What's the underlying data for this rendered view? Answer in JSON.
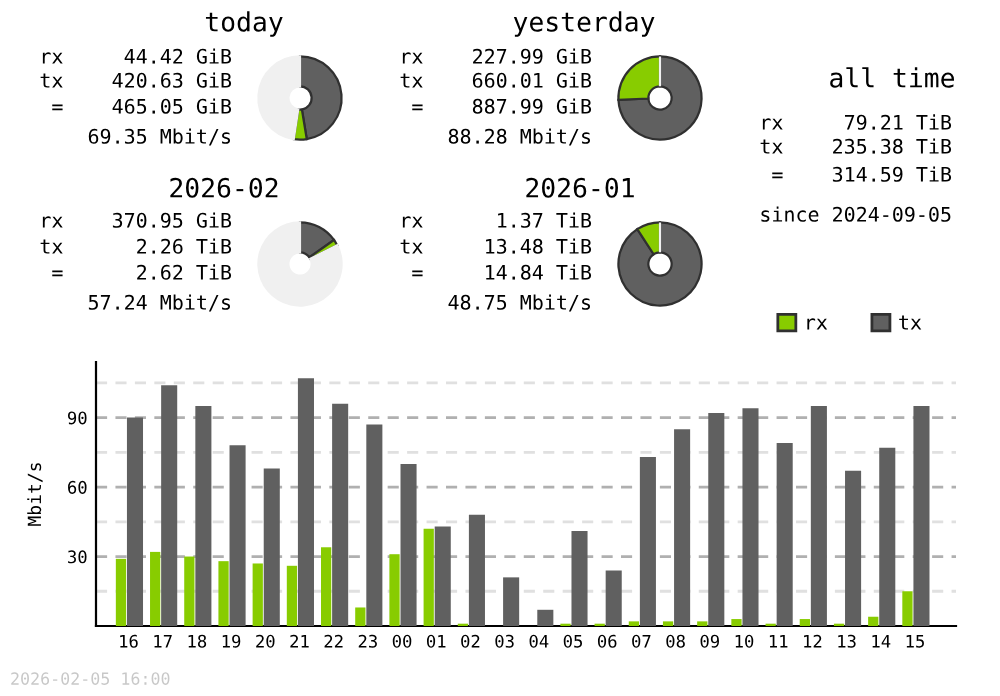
{
  "chart_data": [
    {
      "type": "donut",
      "title": "today",
      "categories": [
        null,
        null,
        null
      ],
      "values": [
        47.4,
        5.0,
        47.6
      ],
      "colors": [
        "#606060",
        "#88cc00",
        "#f0f0f0"
      ],
      "annotations": [
        "rx     44.42 GiB",
        "tx    420.63 GiB",
        " =    465.05 GiB",
        "69.35 Mbit/s"
      ]
    },
    {
      "type": "donut",
      "title": "yesterday",
      "categories": [
        null,
        null,
        null
      ],
      "values": [
        74.3,
        25.7,
        0
      ],
      "colors": [
        "#606060",
        "#88cc00",
        "#f0f0f0"
      ],
      "annotations": [
        "rx    227.99 GiB",
        "tx    660.01 GiB",
        " =    887.99 GiB",
        "88.28 Mbit/s"
      ]
    },
    {
      "type": "other",
      "title": "all time",
      "annotations": [
        "rx     79.21 TiB",
        "tx    235.38 TiB",
        " =    314.59 TiB",
        "since 2024-09-05"
      ]
    },
    {
      "type": "donut",
      "title": "2026-02",
      "categories": [
        null,
        null,
        null
      ],
      "values": [
        15.2,
        2.4,
        82.4
      ],
      "colors": [
        "#606060",
        "#88cc00",
        "#f0f0f0"
      ],
      "annotations": [
        "rx    370.95 GiB",
        "tx      2.26 TiB",
        " =      2.62 TiB",
        "57.24 Mbit/s"
      ]
    },
    {
      "type": "donut",
      "title": "2026-01",
      "categories": [
        null,
        null,
        null
      ],
      "values": [
        90.8,
        9.2,
        0
      ],
      "colors": [
        "#606060",
        "#88cc00",
        "#f0f0f0"
      ],
      "annotations": [
        "rx      1.37 TiB",
        "tx     13.48 TiB",
        " =     14.84 TiB",
        "48.75 Mbit/s"
      ]
    },
    {
      "type": "bar",
      "ylabel": "Mbit/s",
      "categories": [
        "16",
        "17",
        "18",
        "19",
        "20",
        "21",
        "22",
        "23",
        "00",
        "01",
        "02",
        "03",
        "04",
        "05",
        "06",
        "07",
        "08",
        "09",
        "10",
        "11",
        "12",
        "13",
        "14",
        "15"
      ],
      "series": [
        {
          "name": "rx",
          "color": "#88cc00",
          "values": [
            29,
            32,
            30,
            28,
            27,
            26,
            34,
            8,
            31,
            42,
            1,
            0,
            0,
            1,
            1,
            2,
            2,
            2,
            3,
            1,
            3,
            1,
            4,
            15
          ]
        },
        {
          "name": "tx",
          "color": "#606060",
          "values": [
            90,
            104,
            95,
            78,
            68,
            107,
            96,
            87,
            70,
            43,
            48,
            21,
            7,
            41,
            24,
            73,
            85,
            92,
            94,
            79,
            95,
            67,
            77,
            95
          ]
        }
      ],
      "ylim": [
        0,
        114
      ],
      "yticks": [
        {
          "value": 15,
          "label": null
        },
        30,
        {
          "value": 45,
          "label": null
        },
        60,
        {
          "value": 75,
          "label": null
        },
        90,
        {
          "value": 105,
          "label": null
        }
      ],
      "grid": "y",
      "legend": "top right",
      "annotations": [
        "2026-02-05 16:00"
      ]
    }
  ]
}
